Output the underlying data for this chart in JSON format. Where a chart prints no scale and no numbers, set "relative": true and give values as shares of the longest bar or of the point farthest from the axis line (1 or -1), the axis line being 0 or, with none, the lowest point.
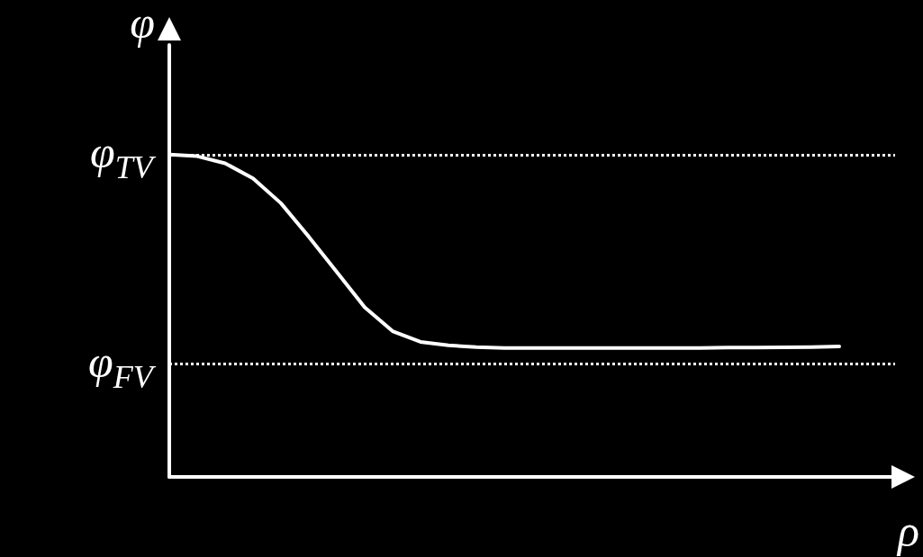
{
  "chart_data": {
    "type": "line",
    "relative": true,
    "xlabel": "ρ",
    "ylabel": "φ",
    "categories": [
      null,
      null,
      null,
      null,
      null,
      null,
      null,
      null,
      null,
      null,
      null,
      null,
      null,
      null,
      null,
      null,
      null,
      null,
      null,
      null,
      null,
      null,
      null,
      null,
      null,
      null,
      null
    ],
    "series": [
      {
        "color": "#ffffff",
        "values": [
          1.0,
          0.995,
          0.973,
          0.926,
          0.849,
          0.745,
          0.636,
          0.526,
          0.452,
          0.419,
          0.408,
          0.403,
          0.4,
          0.4,
          0.4,
          0.4,
          0.4,
          0.4,
          0.4,
          0.4,
          0.401,
          0.401,
          0.402,
          0.403,
          0.405,
          null,
          null
        ]
      }
    ],
    "ref_lines": [
      {
        "axis": "y",
        "value": 1,
        "label": "φ$_{TV}$",
        "color": "#ffffff",
        "line_style": "dotted"
      },
      {
        "axis": "y",
        "value": 0.348,
        "label": "φ$_{FV}$",
        "color": "#ffffff",
        "line_style": "dotted"
      }
    ],
    "marker": "none",
    "line_style": "solid"
  }
}
